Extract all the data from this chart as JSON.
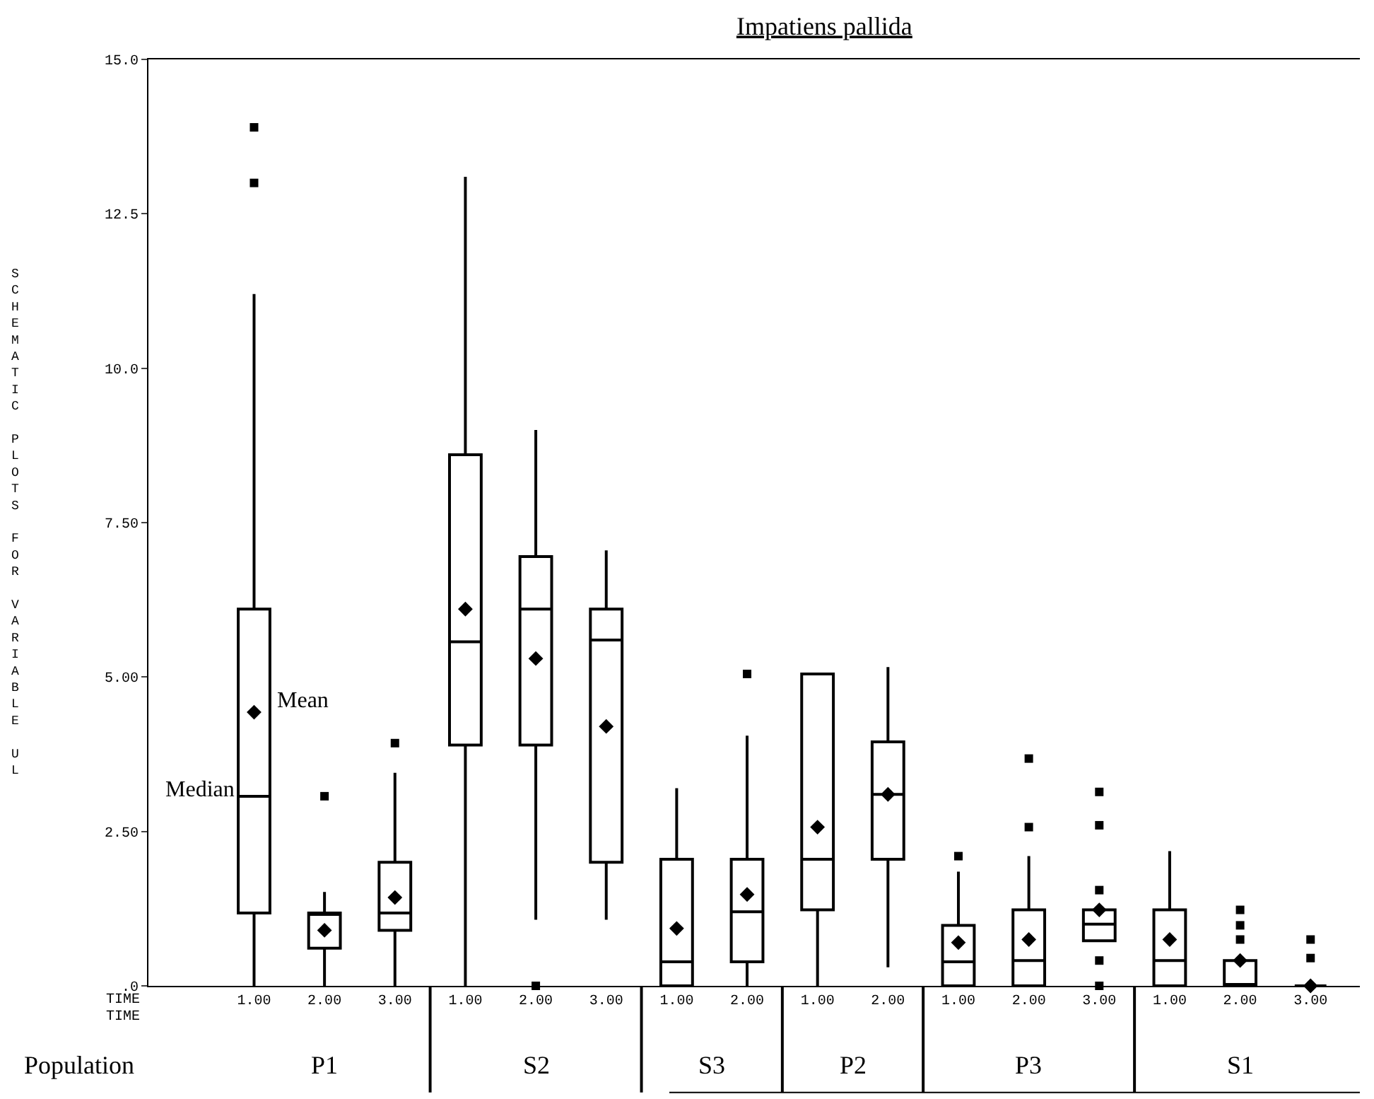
{
  "chart_data": {
    "type": "box",
    "title": "Impatiens pallida",
    "ylabel": "SCHEMATIC PLOTS FOR VARIABLE UL",
    "color": "#000000",
    "categories": [
      "1.00",
      "2.00",
      "3.00",
      "1.00",
      "2.00",
      "3.00",
      "1.00",
      "2.00",
      "1.00",
      "2.00",
      "1.00",
      "2.00",
      "3.00",
      "1.00",
      "2.00",
      "3.00"
    ],
    "boxes": [
      {
        "low": 0,
        "q1": 1.18,
        "median": 3.07,
        "q3": 6.1,
        "high": 11.2,
        "mean": 4.43,
        "outliers": [
          13.0,
          13.9
        ]
      },
      {
        "low": 0,
        "q1": 0.61,
        "median": 1.18,
        "q3": 1.18,
        "high": 1.52,
        "mean": 0.9,
        "outliers": [
          3.07
        ]
      },
      {
        "low": 0,
        "q1": 0.9,
        "median": 1.18,
        "q3": 2.0,
        "high": 3.45,
        "mean": 1.43,
        "outliers": [
          3.93
        ]
      },
      {
        "low": 0,
        "q1": 3.9,
        "median": 5.57,
        "q3": 8.6,
        "high": 13.1,
        "mean": 6.1
      },
      {
        "low": 1.07,
        "q1": 3.9,
        "median": 6.1,
        "q3": 6.95,
        "high": 9.0,
        "mean": 5.3,
        "outliers": [
          0
        ]
      },
      {
        "low": 1.07,
        "q1": 2.0,
        "median": 5.6,
        "q3": 6.1,
        "high": 7.05,
        "mean": 4.2
      },
      {
        "low": 0,
        "q1": 0,
        "median": 0.39,
        "q3": 2.05,
        "high": 3.2,
        "mean": 0.93
      },
      {
        "low": 0,
        "q1": 0.39,
        "median": 1.2,
        "q3": 2.05,
        "high": 4.05,
        "mean": 1.48,
        "outliers": [
          5.05
        ]
      },
      {
        "low": 0,
        "q1": 1.23,
        "median": 2.05,
        "q3": 5.05,
        "high": 5.05,
        "mean": 2.57
      },
      {
        "low": 0.3,
        "q1": 2.05,
        "median": 3.1,
        "q3": 3.95,
        "high": 5.16,
        "mean": 3.1
      },
      {
        "low": 0,
        "q1": 0,
        "median": 0.39,
        "q3": 0.98,
        "high": 1.85,
        "mean": 0.7,
        "outliers": [
          2.1
        ]
      },
      {
        "low": 0,
        "q1": 0,
        "median": 0.41,
        "q3": 1.23,
        "high": 2.1,
        "mean": 0.75,
        "outliers": [
          2.57,
          3.68
        ]
      },
      {
        "low": 0.73,
        "q1": 0.73,
        "median": 1.0,
        "q3": 1.23,
        "high": 1.23,
        "mean": 1.23,
        "outliers": [
          0,
          0.41,
          1.55,
          2.6,
          3.14
        ]
      },
      {
        "low": 0,
        "q1": 0,
        "median": 0.41,
        "q3": 1.23,
        "high": 2.18,
        "mean": 0.75
      },
      {
        "low": 0,
        "q1": 0,
        "median": 0,
        "q3": 0.41,
        "high": 0.41,
        "mean": 0.41,
        "outliers": [
          0.75,
          0.98,
          1.23
        ]
      },
      {
        "low": 0,
        "q1": 0,
        "median": 0,
        "q3": 0,
        "high": 0,
        "mean": 0,
        "outliers": [
          0.45,
          0.75
        ]
      }
    ],
    "ylim": [
      0,
      15
    ],
    "yticks": [
      {
        "value": 0,
        "label": ".0"
      },
      {
        "value": 2.5,
        "label": "2.50"
      },
      {
        "value": 5,
        "label": "5.00"
      },
      {
        "value": 7.5,
        "label": "7.50"
      },
      {
        "value": 10,
        "label": "10.0"
      },
      {
        "value": 12.5,
        "label": "12.5"
      },
      {
        "value": 15,
        "label": "15.0"
      }
    ],
    "annotations": [
      "Mean",
      "Median",
      "TIME",
      "TIME",
      "Population",
      "P1",
      "S2",
      "S3",
      "P2",
      "P3",
      "S1"
    ]
  }
}
